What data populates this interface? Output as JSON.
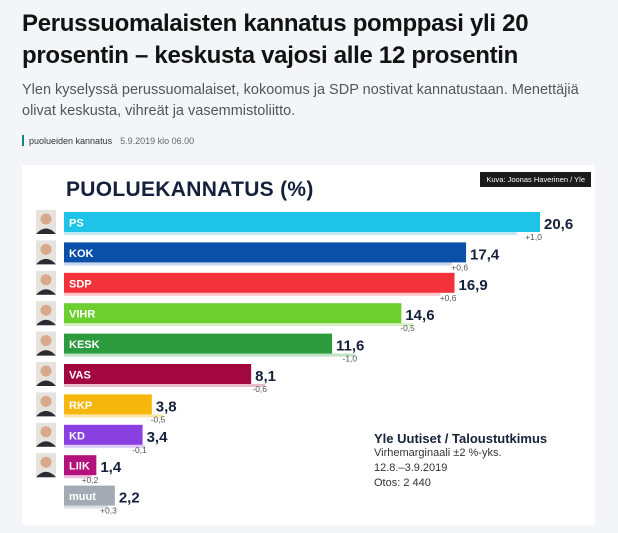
{
  "article": {
    "headline": "Perussuomalaisten kannatus pomppasi yli 20 prosentin – keskusta vajosi alle 12 prosentin",
    "lead": "Ylen kyselyssä perussuomalaiset, kokoomus ja SDP nostivat kannatustaan. Menettäjiä olivat keskusta, vihreät ja vasemmistoliitto.",
    "topic": "puolueiden kannatus",
    "date": "5.9.2019 klo 06.00"
  },
  "graphic": {
    "credit": "Kuva: Joonas Haverinen / Yle",
    "source_title": "Yle Uutiset / Taloustutkimus",
    "source_lines": [
      "Virhemarginaali ±2 %-yks.",
      "12.8.–3.9.2019",
      "Otos: 2 440"
    ]
  },
  "chart_data": {
    "type": "bar",
    "orientation": "horizontal",
    "title": "PUOLUEKANNATUS (%)",
    "xlabel": "",
    "ylabel": "",
    "xlim": [
      0,
      20.6
    ],
    "categories": [
      "PS",
      "KOK",
      "SDP",
      "VIHR",
      "KESK",
      "VAS",
      "RKP",
      "KD",
      "LIIK",
      "muut"
    ],
    "values": [
      20.6,
      17.4,
      16.9,
      14.6,
      11.6,
      8.1,
      3.8,
      3.4,
      1.4,
      2.2
    ],
    "value_labels": [
      "20,6",
      "17,4",
      "16,9",
      "14,6",
      "11,6",
      "8,1",
      "3,8",
      "3,4",
      "1,4",
      "2,2"
    ],
    "changes": [
      "+1,0",
      "+0,6",
      "+0,6",
      "-0,5",
      "-1,0",
      "-0,6",
      "-0,5",
      "-0,1",
      "+0,2",
      "+0,3"
    ],
    "previous_values": [
      19.6,
      16.8,
      16.3,
      15.1,
      12.6,
      8.7,
      4.3,
      3.5,
      1.2,
      1.9
    ],
    "colors": [
      "#1fc3e8",
      "#0a4fa8",
      "#f4323b",
      "#6ccf2f",
      "#2c9b3e",
      "#a3073f",
      "#f6b60c",
      "#8a3fe0",
      "#b3127a",
      "#a3aab3"
    ],
    "ghost_colors": [
      "#bfe9f5",
      "#c7d6ee",
      "#fbc4c6",
      "#d5efc2",
      "#c2e2c8",
      "#e5bcc9",
      "#fce4a8",
      "#dccbf6",
      "#eec0dd",
      "#dde0e4"
    ],
    "portraits": [
      true,
      true,
      true,
      true,
      true,
      true,
      true,
      true,
      true,
      false
    ]
  }
}
